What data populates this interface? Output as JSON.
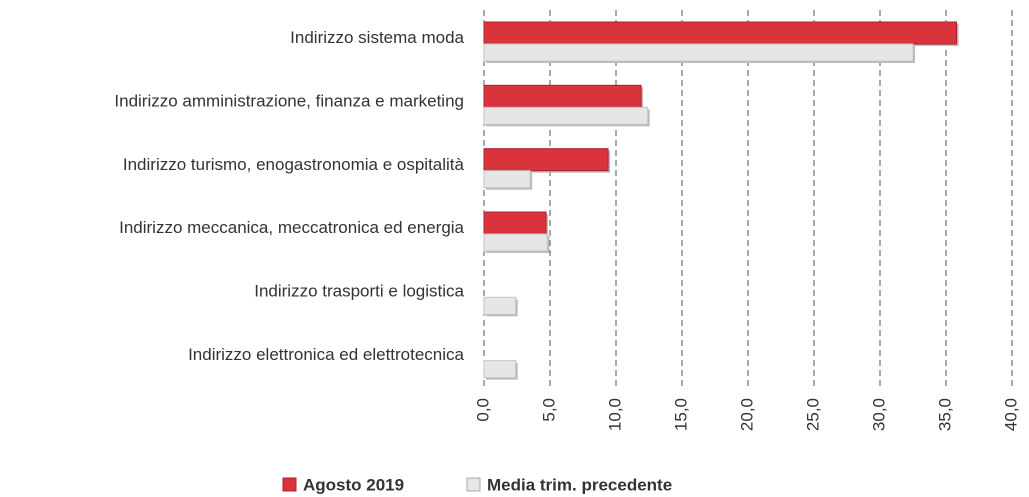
{
  "chart_data": {
    "type": "bar",
    "orientation": "horizontal",
    "categories": [
      "Indirizzo sistema moda",
      "Indirizzo amministrazione, finanza e marketing",
      "Indirizzo turismo, enogastronomia e ospitalità",
      "Indirizzo meccanica, meccatronica ed energia",
      "Indirizzo trasporti e logistica",
      "Indirizzo elettronica ed elettrotecnica"
    ],
    "series": [
      {
        "name": "Agosto 2019",
        "color": "#d9333b",
        "values": [
          35.8,
          11.9,
          9.4,
          4.7,
          0,
          0
        ]
      },
      {
        "name": "Media trim. precedente",
        "color": "#e6e6e6",
        "values": [
          32.5,
          12.4,
          3.5,
          4.8,
          2.4,
          2.4
        ]
      }
    ],
    "xlim": [
      0,
      40
    ],
    "xticks": [
      {
        "value": 0,
        "label": "0,0"
      },
      {
        "value": 5,
        "label": "5,0"
      },
      {
        "value": 10,
        "label": "10,0"
      },
      {
        "value": 15,
        "label": "15,0"
      },
      {
        "value": 20,
        "label": "20,0"
      },
      {
        "value": 25,
        "label": "25,0"
      },
      {
        "value": 30,
        "label": "30,0"
      },
      {
        "value": 35,
        "label": "35,0"
      },
      {
        "value": 40,
        "label": "40,0"
      }
    ],
    "grid": true,
    "legend": "bottom"
  }
}
